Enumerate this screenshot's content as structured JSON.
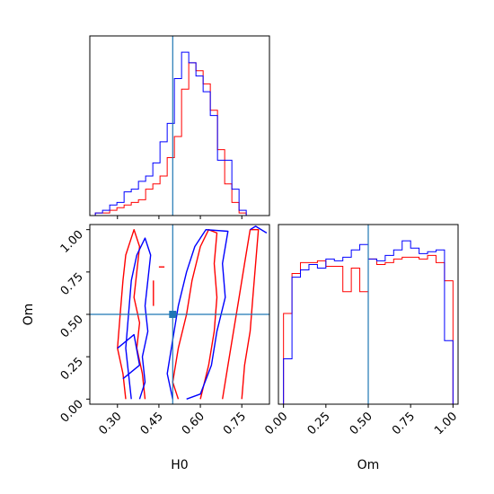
{
  "colors": {
    "series_a": "#ff0000",
    "series_b": "#0000ff",
    "truth": "#1f77b4",
    "axes": "#000000"
  },
  "chart_data": [
    {
      "panel": "H0 marginal histogram",
      "type": "histogram",
      "xlim": [
        0.2,
        0.85
      ],
      "x_ticks": [
        0.3,
        0.45,
        0.6,
        0.75
      ],
      "truth_x": 0.5,
      "bin_edges": [
        0.22,
        0.246,
        0.272,
        0.298,
        0.324,
        0.35,
        0.376,
        0.402,
        0.428,
        0.454,
        0.48,
        0.506,
        0.532,
        0.558,
        0.584,
        0.61,
        0.636,
        0.662,
        0.688,
        0.714,
        0.74,
        0.766,
        0.792,
        0.818
      ],
      "series": [
        {
          "color": "red",
          "counts": [
            1,
            1,
            2,
            3,
            4,
            5,
            6,
            10,
            12,
            15,
            22,
            30,
            48,
            58,
            55,
            50,
            40,
            25,
            12,
            5,
            1,
            0,
            0
          ]
        },
        {
          "color": "blue",
          "counts": [
            1,
            2,
            4,
            5,
            9,
            10,
            13,
            15,
            20,
            28,
            35,
            52,
            62,
            58,
            53,
            47,
            38,
            21,
            21,
            10,
            2,
            0,
            0
          ]
        }
      ]
    },
    {
      "panel": "H0 vs Om 2D contours",
      "type": "contour",
      "xlabel": "H0",
      "ylabel": "Om",
      "xlim": [
        0.2,
        0.85
      ],
      "ylim": [
        -0.03,
        1.03
      ],
      "x_ticks": [
        0.3,
        0.45,
        0.6,
        0.75
      ],
      "x_tick_labels": [
        "0.30",
        "0.45",
        "0.60",
        "0.75"
      ],
      "y_ticks": [
        0.0,
        0.25,
        0.5,
        0.75,
        1.0
      ],
      "y_tick_labels": [
        "0.00",
        "0.25",
        "0.50",
        "0.75",
        "1.00"
      ],
      "truth": [
        0.5,
        0.5
      ],
      "series": [
        {
          "color": "red",
          "contours": [
            [
              [
                0.33,
                0.0
              ],
              [
                0.32,
                0.15
              ],
              [
                0.3,
                0.3
              ],
              [
                0.31,
                0.5
              ],
              [
                0.32,
                0.7
              ],
              [
                0.33,
                0.85
              ],
              [
                0.36,
                1.0
              ],
              [
                0.38,
                0.9
              ],
              [
                0.37,
                0.75
              ],
              [
                0.36,
                0.6
              ],
              [
                0.38,
                0.45
              ],
              [
                0.37,
                0.3
              ],
              [
                0.39,
                0.15
              ],
              [
                0.4,
                0.0
              ]
            ],
            [
              [
                0.52,
                0.0
              ],
              [
                0.5,
                0.1
              ],
              [
                0.52,
                0.3
              ],
              [
                0.55,
                0.5
              ],
              [
                0.57,
                0.7
              ],
              [
                0.6,
                0.9
              ],
              [
                0.63,
                1.0
              ],
              [
                0.66,
                0.98
              ],
              [
                0.65,
                0.8
              ],
              [
                0.66,
                0.6
              ],
              [
                0.65,
                0.4
              ],
              [
                0.63,
                0.2
              ],
              [
                0.6,
                0.0
              ]
            ],
            [
              [
                0.68,
                0.0
              ],
              [
                0.7,
                0.2
              ],
              [
                0.72,
                0.4
              ],
              [
                0.74,
                0.6
              ],
              [
                0.76,
                0.8
              ],
              [
                0.78,
                1.0
              ],
              [
                0.81,
                1.0
              ],
              [
                0.8,
                0.8
              ],
              [
                0.79,
                0.6
              ],
              [
                0.78,
                0.4
              ],
              [
                0.76,
                0.2
              ],
              [
                0.75,
                0.0
              ]
            ],
            [
              [
                0.43,
                0.7
              ],
              [
                0.43,
                0.55
              ]
            ],
            [
              [
                0.45,
                0.78
              ],
              [
                0.47,
                0.78
              ]
            ]
          ]
        },
        {
          "color": "blue",
          "contours": [
            [
              [
                0.35,
                0.0
              ],
              [
                0.34,
                0.15
              ],
              [
                0.33,
                0.3
              ],
              [
                0.34,
                0.5
              ],
              [
                0.35,
                0.7
              ],
              [
                0.37,
                0.85
              ],
              [
                0.4,
                0.95
              ],
              [
                0.42,
                0.85
              ],
              [
                0.41,
                0.7
              ],
              [
                0.4,
                0.55
              ],
              [
                0.41,
                0.4
              ],
              [
                0.39,
                0.25
              ],
              [
                0.4,
                0.1
              ],
              [
                0.38,
                0.0
              ]
            ],
            [
              [
                0.5,
                0.0
              ],
              [
                0.48,
                0.15
              ],
              [
                0.5,
                0.35
              ],
              [
                0.52,
                0.55
              ],
              [
                0.55,
                0.75
              ],
              [
                0.58,
                0.9
              ],
              [
                0.62,
                1.0
              ],
              [
                0.7,
                0.99
              ],
              [
                0.68,
                0.8
              ],
              [
                0.69,
                0.6
              ],
              [
                0.66,
                0.4
              ],
              [
                0.64,
                0.2
              ],
              [
                0.6,
                0.03
              ],
              [
                0.55,
                0.0
              ]
            ],
            [
              [
                0.78,
                1.0
              ],
              [
                0.8,
                1.02
              ],
              [
                0.84,
                0.98
              ]
            ],
            [
              [
                0.3,
                0.3
              ],
              [
                0.36,
                0.38
              ],
              [
                0.38,
                0.2
              ],
              [
                0.32,
                0.12
              ]
            ]
          ]
        }
      ]
    },
    {
      "panel": "Om marginal histogram",
      "type": "histogram",
      "xlabel": "Om",
      "xlim": [
        -0.03,
        1.03
      ],
      "x_ticks": [
        0.0,
        0.25,
        0.5,
        0.75,
        1.0
      ],
      "x_tick_labels": [
        "0.00",
        "0.25",
        "0.50",
        "0.75",
        "1.00"
      ],
      "truth_x": 0.5,
      "bin_edges": [
        0.0,
        0.05,
        0.1,
        0.15,
        0.2,
        0.25,
        0.3,
        0.35,
        0.4,
        0.45,
        0.5,
        0.55,
        0.6,
        0.65,
        0.7,
        0.75,
        0.8,
        0.85,
        0.9,
        0.95,
        1.0
      ],
      "series": [
        {
          "color": "red",
          "counts": [
            50,
            72,
            78,
            78,
            79,
            76,
            76,
            62,
            75,
            62,
            80,
            77,
            78,
            80,
            81,
            81,
            80,
            82,
            78,
            68
          ]
        },
        {
          "color": "blue",
          "counts": [
            25,
            70,
            74,
            77,
            75,
            80,
            79,
            81,
            85,
            88,
            80,
            79,
            82,
            85,
            90,
            86,
            83,
            84,
            85,
            35
          ]
        }
      ]
    }
  ]
}
